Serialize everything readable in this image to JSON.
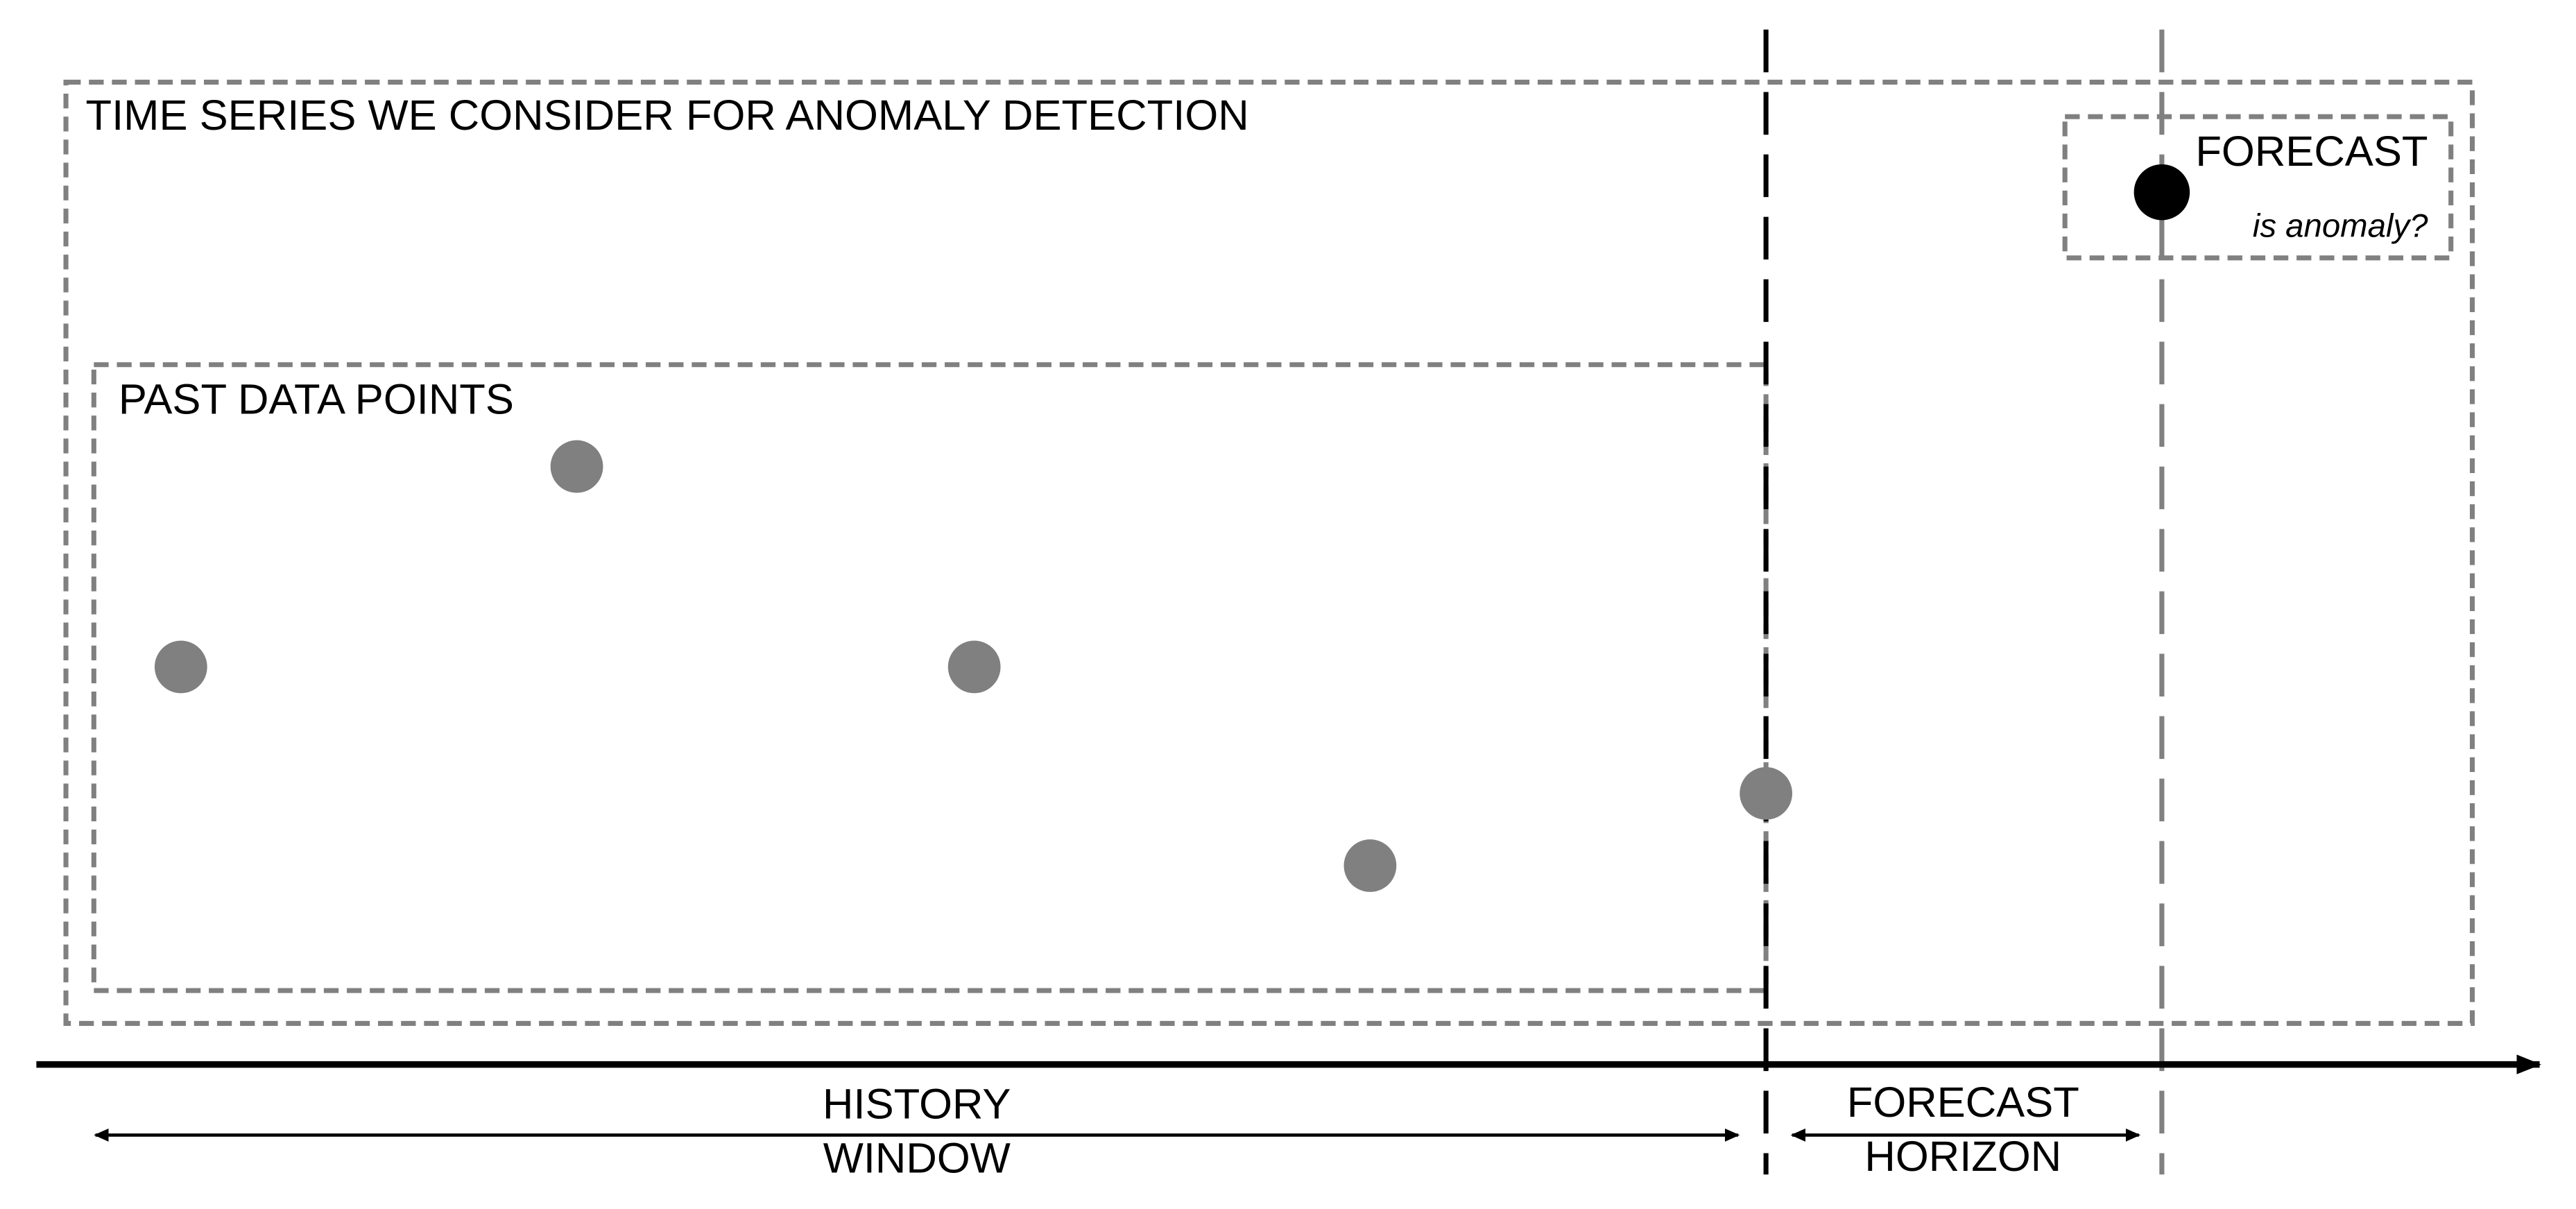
{
  "title": "TIME SERIES WE CONSIDER FOR ANOMALY DETECTION",
  "past_box": {
    "label": "PAST DATA POINTS"
  },
  "forecast_box": {
    "label": "FORECAST",
    "question": "is anomaly?"
  },
  "history_window": {
    "line1": "HISTORY",
    "line2": "WINDOW"
  },
  "forecast_horizon": {
    "line1": "FORECAST",
    "line2": "HORIZON"
  }
}
